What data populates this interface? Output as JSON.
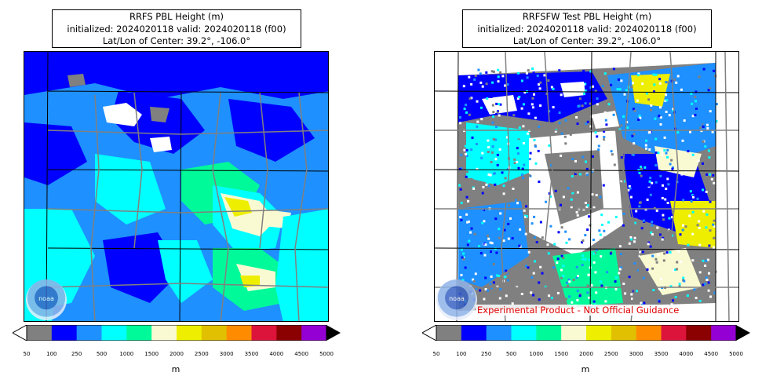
{
  "left_panel": {
    "title_line1": "RRFS PBL Height (m)",
    "title_line2": "initialized: 2024020118 valid: 2024020118 (f00)",
    "title_line3": "Lat/Lon of Center: 39.2°, -106.0°",
    "logo_text": "noaa"
  },
  "right_panel": {
    "title_line1": "RRFSFW Test PBL Height (m)",
    "title_line2": "initialized: 2024020118 valid: 2024020118 (f00)",
    "title_line3": "Lat/Lon of Center: 39.2°, -106.0°",
    "logo_text": "noaa",
    "disclaimer": "Experimental Product - Not Official Guidance"
  },
  "colorbar": {
    "unit": "m",
    "ticks": [
      "50",
      "100",
      "250",
      "500",
      "1000",
      "1500",
      "2000",
      "2500",
      "3000",
      "3500",
      "4000",
      "4500",
      "5000"
    ],
    "colors": [
      "#808080",
      "#0000ff",
      "#1e90ff",
      "#00ffff",
      "#00fa9a",
      "#fafad2",
      "#eeee00",
      "#e0c000",
      "#ff8c00",
      "#dc143c",
      "#8b0000",
      "#9400d3"
    ],
    "under_color": "#ffffff",
    "over_color": "#000000"
  }
}
